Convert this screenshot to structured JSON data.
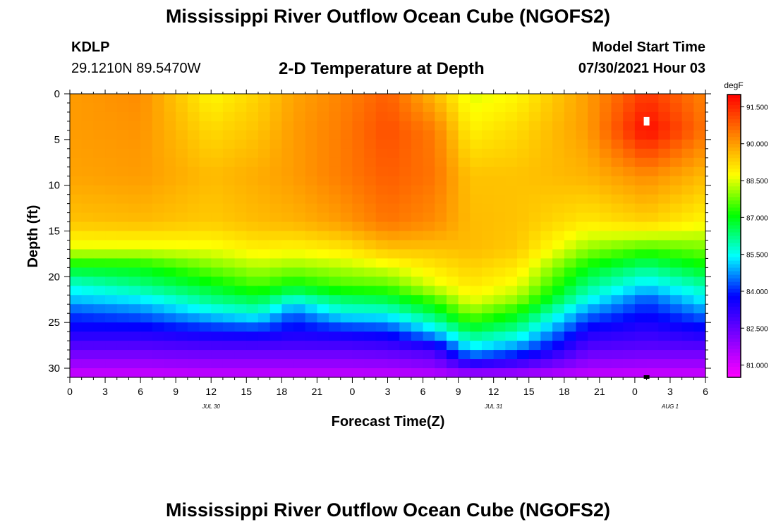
{
  "header": {
    "title": "Mississippi River Outflow Ocean Cube (NGOFS2)",
    "station_id": "KDLP",
    "station_coords": "29.1210N  89.5470W",
    "plot_title": "2-D Temperature at Depth",
    "model_start_label": "Model Start Time",
    "model_start_value": "07/30/2021 Hour 03"
  },
  "footer": {
    "title": "Mississippi River Outflow Ocean Cube (NGOFS2)"
  },
  "chart_data": {
    "type": "heatmap",
    "title": "2-D Temperature at Depth",
    "xlabel": "Forecast Time(Z)",
    "ylabel": "Depth (ft)",
    "x_tick_labels": [
      "0",
      "3",
      "6",
      "9",
      "12",
      "15",
      "18",
      "21",
      "0",
      "3",
      "6",
      "9",
      "12",
      "15",
      "18",
      "21",
      "0",
      "3",
      "6"
    ],
    "date_labels": [
      {
        "label": "JUL 30",
        "x": 12
      },
      {
        "label": "JUL 31",
        "x": 36
      },
      {
        "label": "AUG 1",
        "x": 51
      }
    ],
    "xlim": [
      0,
      54
    ],
    "ylim": [
      31,
      0
    ],
    "y_ticks": [
      0,
      5,
      10,
      15,
      20,
      25,
      30
    ],
    "colorbar": {
      "unit": "degF",
      "range": [
        80.5,
        92.0
      ],
      "tick_values": [
        81.0,
        82.5,
        84.0,
        85.5,
        87.0,
        88.5,
        90.0,
        91.5
      ],
      "tick_labels": [
        "81.000",
        "82.500",
        "84.000",
        "85.500",
        "87.000",
        "88.500",
        "90.000",
        "91.500"
      ],
      "colors": [
        "#ff00ff",
        "#c000ff",
        "#8000ff",
        "#4000ff",
        "#0000ff",
        "#0080ff",
        "#00ffff",
        "#00ff80",
        "#00ff00",
        "#80ff00",
        "#ffff00",
        "#ffc000",
        "#ff8000",
        "#ff4000",
        "#ff0000"
      ]
    },
    "depth_profiles": {
      "depths": [
        0,
        4,
        9,
        14,
        17,
        19,
        21,
        22.5,
        24,
        26,
        28,
        31
      ],
      "profiles": [
        {
          "hour": 0,
          "temps": [
            90.0,
            90.0,
            89.9,
            89.5,
            88.5,
            86.9,
            85.6,
            85.0,
            84.2,
            83.5,
            82.5,
            81.1
          ]
        },
        {
          "hour": 6,
          "temps": [
            90.2,
            90.1,
            90.0,
            89.6,
            88.5,
            87.0,
            86.2,
            85.3,
            84.5,
            83.5,
            82.5,
            81.1
          ]
        },
        {
          "hour": 12,
          "temps": [
            88.8,
            89.2,
            89.6,
            89.4,
            88.6,
            87.8,
            86.9,
            86.2,
            85.3,
            83.8,
            82.6,
            81.2
          ]
        },
        {
          "hour": 16,
          "temps": [
            89.3,
            89.5,
            89.8,
            89.6,
            88.9,
            88.2,
            87.5,
            86.6,
            85.7,
            83.9,
            82.6,
            81.2
          ]
        },
        {
          "hour": 19,
          "temps": [
            89.9,
            90.0,
            90.0,
            89.7,
            88.8,
            88.0,
            87.0,
            85.7,
            84.4,
            83.6,
            82.6,
            81.2
          ]
        },
        {
          "hour": 23,
          "temps": [
            90.3,
            90.4,
            90.4,
            90.0,
            89.0,
            88.2,
            87.5,
            86.4,
            85.5,
            83.8,
            82.6,
            81.2
          ]
        },
        {
          "hour": 27,
          "temps": [
            90.8,
            91.0,
            90.8,
            90.5,
            89.5,
            88.5,
            87.6,
            86.6,
            85.6,
            84.0,
            82.7,
            81.2
          ]
        },
        {
          "hour": 31,
          "temps": [
            89.6,
            90.4,
            90.5,
            90.2,
            89.5,
            89.0,
            88.5,
            87.5,
            86.6,
            85.2,
            83.0,
            81.3
          ]
        },
        {
          "hour": 34,
          "temps": [
            88.5,
            88.9,
            89.5,
            89.6,
            89.6,
            89.3,
            89.0,
            88.6,
            87.9,
            86.5,
            85.2,
            81.4
          ]
        },
        {
          "hour": 38,
          "temps": [
            88.8,
            89.2,
            89.5,
            89.5,
            89.4,
            89.0,
            88.6,
            88.0,
            87.1,
            86.0,
            84.5,
            81.4
          ]
        },
        {
          "hour": 44,
          "temps": [
            90.0,
            90.0,
            89.7,
            89.0,
            88.0,
            87.0,
            86.2,
            85.5,
            84.6,
            83.5,
            82.6,
            81.2
          ]
        },
        {
          "hour": 49,
          "temps": [
            91.3,
            91.9,
            90.2,
            89.3,
            87.5,
            86.2,
            85.2,
            84.3,
            83.8,
            83.2,
            82.5,
            81.1
          ]
        },
        {
          "hour": 54,
          "temps": [
            90.3,
            90.5,
            89.6,
            88.8,
            87.8,
            87.0,
            86.0,
            85.4,
            84.6,
            83.6,
            82.5,
            81.1
          ]
        }
      ]
    },
    "max_temp_marker": {
      "hour": 49,
      "depth": 3
    },
    "bottom_marker": {
      "hour": 49,
      "depth": 31
    }
  }
}
